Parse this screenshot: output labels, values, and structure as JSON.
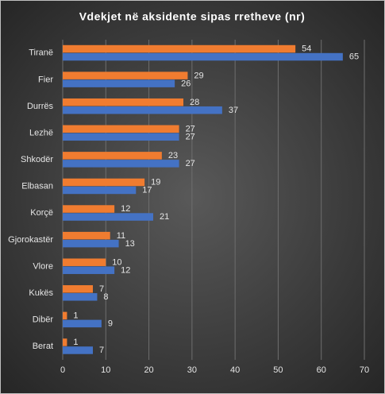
{
  "chart_data": {
    "type": "hbar",
    "title": "Vdekjet në aksidente sipas rretheve (nr)",
    "categories": [
      "Tiranë",
      "Fier",
      "Durrës",
      "Lezhë",
      "Shkodër",
      "Elbasan",
      "Korçë",
      "Gjorokastër",
      "Vlore",
      "Kukës",
      "Dibër",
      "Berat"
    ],
    "series": [
      {
        "color": "#f07c30",
        "values": [
          54,
          29,
          28,
          27,
          23,
          19,
          12,
          11,
          10,
          7,
          1,
          1
        ]
      },
      {
        "color": "#4472c4",
        "values": [
          65,
          26,
          37,
          27,
          27,
          17,
          21,
          13,
          12,
          8,
          9,
          7
        ]
      }
    ],
    "xlim": [
      0,
      70
    ],
    "xticks": [
      0,
      10,
      20,
      30,
      40,
      50,
      60,
      70
    ],
    "grid": true
  }
}
